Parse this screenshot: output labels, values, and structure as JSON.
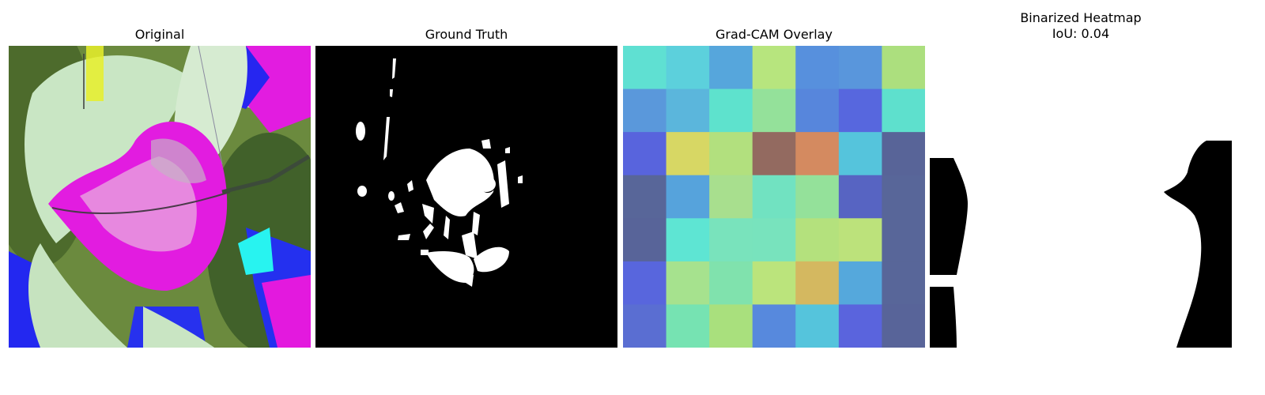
{
  "panels": [
    {
      "title": "Original",
      "image": "leaf-photo-false-color"
    },
    {
      "title": "Ground Truth",
      "image": "binary-mask-white-spots-on-black"
    },
    {
      "title": "Grad-CAM Overlay",
      "image": "7x7-heatmap-grid"
    },
    {
      "title": "Binarized Heatmap",
      "subtitle": "IoU: 0.04",
      "image": "binary-mask-black-edges-on-white"
    }
  ],
  "gradcam_grid": [
    [
      "#5fe0d2",
      "#5cd0dc",
      "#56a6dc",
      "#b7e57e",
      "#5790dd",
      "#5996dc",
      "#acdf7e"
    ],
    [
      "#5a98db",
      "#5bb6dc",
      "#5ee2cd",
      "#94e19a",
      "#5786dc",
      "#5767de",
      "#5ee0cd"
    ],
    [
      "#5864dd",
      "#d7d764",
      "#b2e07e",
      "#936a60",
      "#d48a60",
      "#55c4dc",
      "#586498"
    ],
    [
      "#586699",
      "#56a3dc",
      "#a8df8e",
      "#71e2c1",
      "#94e19a",
      "#5764c2",
      "#586699"
    ],
    [
      "#586499",
      "#5ee5d3",
      "#79e3bc",
      "#78e3bd",
      "#b4e17d",
      "#bce27b",
      "#586699"
    ],
    [
      "#5866dd",
      "#a6e28e",
      "#80e2ad",
      "#bbe47c",
      "#d4b860",
      "#55a8dc",
      "#586699"
    ],
    [
      "#5a6ed2",
      "#76e3b2",
      "#a9e07d",
      "#5789dd",
      "#55c4dc",
      "#5a64dd",
      "#586499"
    ]
  ]
}
